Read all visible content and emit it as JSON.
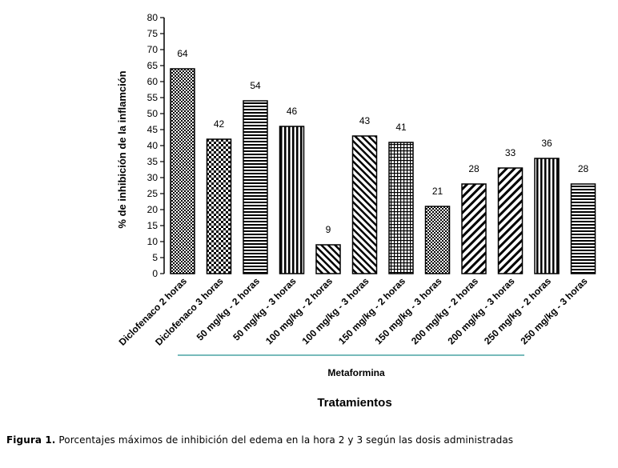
{
  "chart_data": {
    "type": "bar",
    "categories": [
      "Diclofenaco 2 horas",
      "Diclofenaco 3 horas",
      "50 mg/kg - 2 horas",
      "50 mg/kg - 3 horas",
      "100 mg/kg - 2 horas",
      "100 mg/kg - 3 horas",
      "150 mg/kg - 2 horas",
      "150 mg/kg - 3 horas",
      "200 mg/kg - 2 horas",
      "200 mg/kg - 3 horas",
      "250 mg/kg - 2 horas",
      "250 mg/kg - 3 horas"
    ],
    "values": [
      64,
      42,
      54,
      46,
      9,
      43,
      41,
      21,
      28,
      33,
      36,
      28
    ],
    "data_labels": [
      "64",
      "42",
      "54",
      "46",
      "9",
      "43",
      "41",
      "21",
      "28",
      "33",
      "36",
      "28"
    ],
    "ylabel": "% de inhibición de la inflamción",
    "xlabel": "Tratamientos",
    "group_label": "Metaformina",
    "ylim": [
      0,
      80
    ],
    "ytick_step": 5,
    "grid": false,
    "group_line_color": "#4aa3a3",
    "patterns": [
      "dots-fine",
      "checker",
      "hlines",
      "vlines",
      "diag-back",
      "diag-back",
      "grid",
      "dots-fine",
      "diag-fwd",
      "diag-fwd",
      "vlines",
      "hlines"
    ]
  },
  "caption": {
    "figure_label": "Figura 1.",
    "text": " Porcentajes máximos de inhibición del edema en la hora 2 y 3 según las dosis administradas"
  }
}
